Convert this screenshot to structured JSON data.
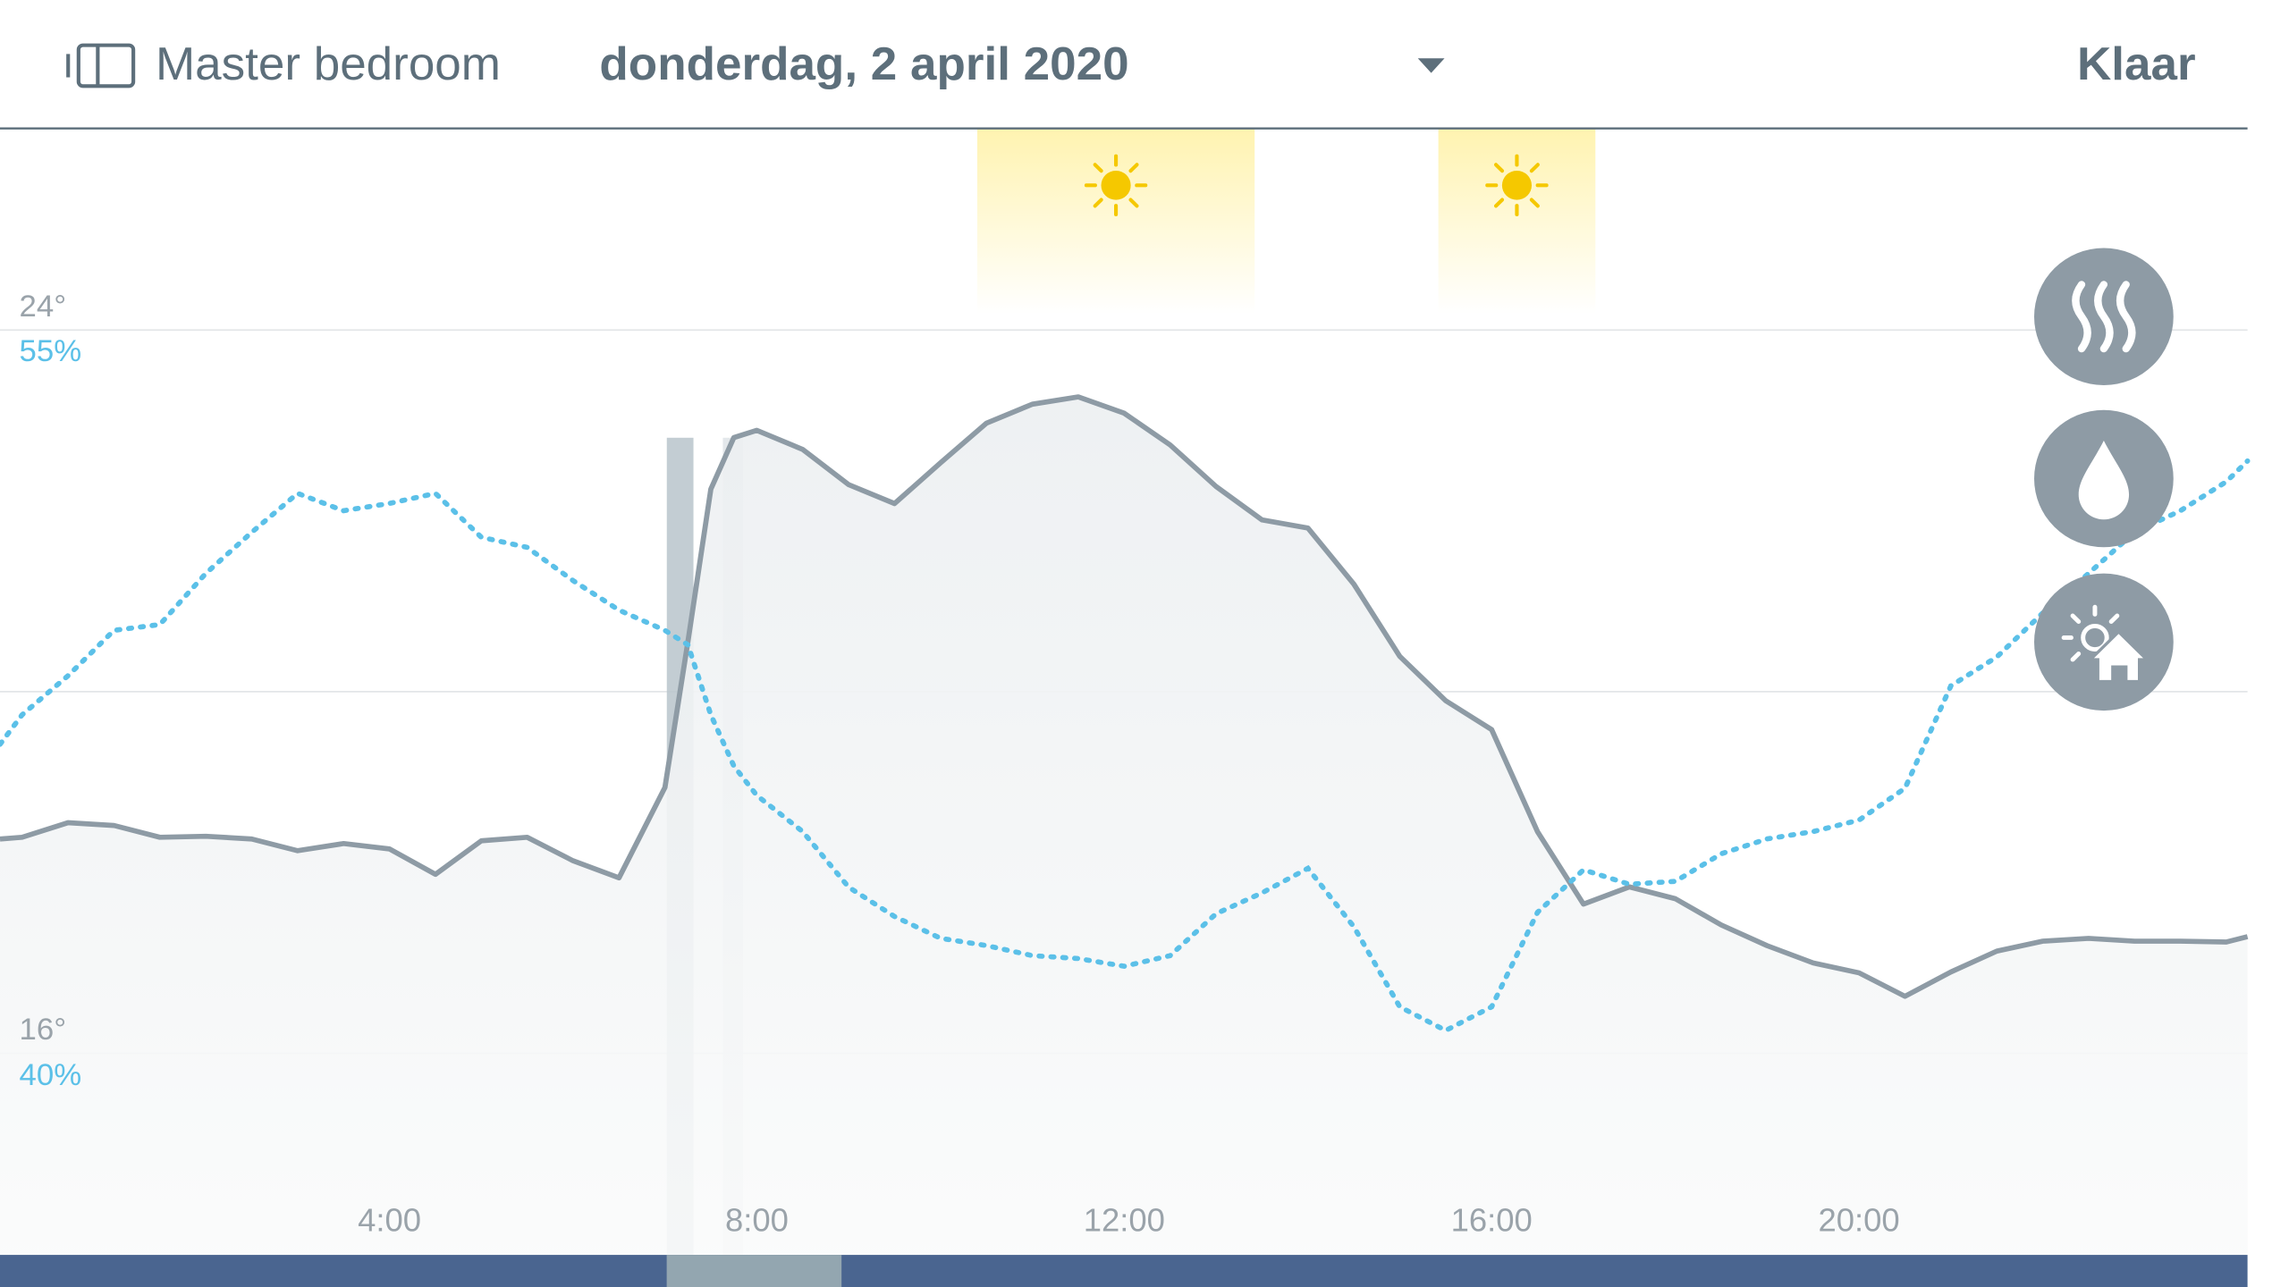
{
  "header": {
    "room": "Master bedroom",
    "date": "donderdag, 2 april 2020",
    "done": "Klaar"
  },
  "chart_data": {
    "type": "line",
    "x": [
      -0.24,
      0,
      0.5,
      1,
      1.5,
      2,
      2.5,
      3,
      3.5,
      4,
      4.5,
      5,
      5.5,
      6,
      6.5,
      7,
      7.25,
      7.5,
      7.75,
      8,
      8.5,
      9,
      9.5,
      10,
      10.5,
      11,
      11.5,
      12,
      12.5,
      13,
      13.5,
      14,
      14.5,
      15,
      15.5,
      16,
      16.5,
      17,
      17.5,
      18,
      18.5,
      19,
      19.5,
      20,
      20.5,
      21,
      21.5,
      22,
      22.5,
      23,
      23.5,
      24,
      24.23
    ],
    "xlim": [
      -0.24,
      24.23
    ],
    "xticks": [
      {
        "value": 4,
        "label": "4:00"
      },
      {
        "value": 8,
        "label": "8:00"
      },
      {
        "value": 12,
        "label": "12:00"
      },
      {
        "value": 16,
        "label": "16:00"
      },
      {
        "value": 20,
        "label": "20:00"
      }
    ],
    "ylim": [
      13.77,
      26.23
    ],
    "yticks": [
      {
        "value": 16,
        "label": "16°"
      },
      {
        "value": 24,
        "label": "24°"
      }
    ],
    "y2lim": [
      35.83,
      59.17
    ],
    "y2ticks": [
      {
        "value": 40,
        "label": "40%"
      },
      {
        "value": 55,
        "label": "55%"
      }
    ],
    "grid": true,
    "series": [
      {
        "color": "#8e9ba5",
        "values": [
          18.37,
          18.39,
          18.55,
          18.52,
          18.39,
          18.4,
          18.37,
          18.24,
          18.32,
          18.26,
          17.98,
          18.35,
          18.39,
          18.13,
          17.94,
          18.94,
          20.55,
          22.24,
          22.81,
          22.89,
          22.68,
          22.29,
          22.08,
          22.53,
          22.97,
          23.18,
          23.26,
          23.08,
          22.73,
          22.27,
          21.9,
          21.81,
          21.19,
          20.39,
          19.9,
          19.58,
          18.45,
          17.65,
          17.84,
          17.71,
          17.42,
          17.19,
          17.0,
          16.89,
          16.63,
          16.9,
          17.13,
          17.24,
          17.27,
          17.24,
          17.24,
          17.23,
          17.29
        ]
      },
      {
        "color": "#5bc0e8",
        "axis": "y2",
        "values": [
          46.41,
          47.02,
          47.83,
          48.77,
          48.89,
          49.95,
          50.8,
          51.61,
          51.25,
          51.4,
          51.61,
          50.7,
          50.49,
          49.8,
          49.19,
          48.77,
          48.47,
          47.02,
          45.96,
          45.35,
          44.6,
          43.45,
          42.84,
          42.39,
          42.24,
          42.03,
          41.97,
          41.81,
          42.03,
          42.9,
          43.33,
          43.84,
          42.63,
          40.97,
          40.48,
          40.97,
          42.93,
          43.81,
          43.51,
          43.57,
          44.14,
          44.45,
          44.6,
          44.84,
          45.5,
          47.62,
          48.22,
          49.13,
          49.95,
          50.8,
          51.25,
          51.85,
          52.28
        ]
      }
    ],
    "sun_periods": [
      [
        10.4,
        13.42
      ],
      [
        15.42,
        17.13
      ]
    ],
    "heating_periods": [
      [
        7.02,
        7.31
      ],
      [
        7.63,
        7.85
      ]
    ]
  }
}
